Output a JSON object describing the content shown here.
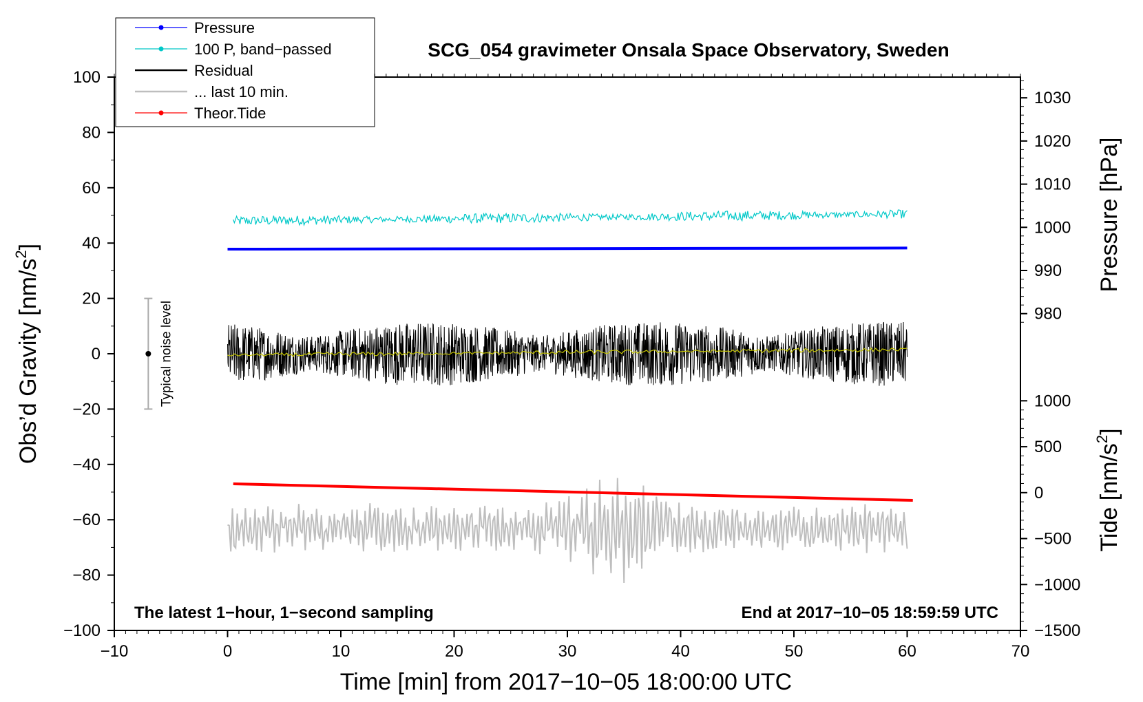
{
  "chart_data": {
    "type": "line",
    "title": "SCG_054 gravimeter Onsala Space Observatory, Sweden",
    "xlabel": "Time [min] from 2017−10−05 18:00:00 UTC",
    "ylabel": "Obs’d Gravity [nm/s²]",
    "ylabel_main": "Obs’d Gravity [nm/s",
    "ylabel_sup": "2",
    "ylabel_close": "]",
    "xlim": [
      -10,
      70
    ],
    "ylim": [
      -100,
      100
    ],
    "x_ticks": [
      -10,
      0,
      10,
      20,
      30,
      40,
      50,
      60,
      70
    ],
    "x_tick_labels": [
      "−10",
      "0",
      "10",
      "20",
      "30",
      "40",
      "50",
      "60",
      "70"
    ],
    "y_ticks": [
      -100,
      -80,
      -60,
      -40,
      -20,
      0,
      20,
      40,
      60,
      80,
      100
    ],
    "y_tick_labels": [
      "−100",
      "−80",
      "−60",
      "−40",
      "−20",
      "0",
      "20",
      "40",
      "60",
      "80",
      "100"
    ],
    "pressure_axis": {
      "label": "Pressure [hPa]",
      "ticks": [
        980,
        990,
        1000,
        1010,
        1020,
        1030
      ],
      "tick_labels": [
        "980",
        "990",
        "1000",
        "1010",
        "1020",
        "1030"
      ],
      "mapping": {
        "value_a": 980,
        "gravity_a": 14.5,
        "value_b": 1030,
        "gravity_b": 92.5
      }
    },
    "tide_axis": {
      "label_main": "Tide [nm/s",
      "label_sup": "2",
      "label_close": "]",
      "ticks": [
        -1500,
        -1000,
        -500,
        0,
        500,
        1000
      ],
      "tick_labels": [
        "−1500",
        "−1000",
        "−500",
        "0",
        "500",
        "1000"
      ],
      "mapping": {
        "value_a": -1500,
        "gravity_a": -100,
        "value_b": 1000,
        "gravity_b": -17
      }
    },
    "legend": [
      {
        "label": "Pressure",
        "color": "#0000ff",
        "marker": true
      },
      {
        "label": "100 P, band−passed",
        "color": "#00c8c8",
        "marker": true
      },
      {
        "label": "Residual",
        "color": "#000000",
        "marker": false
      },
      {
        "label": "... last 10 min.",
        "color": "#bebebe",
        "marker": false
      },
      {
        "label": "Theor.Tide",
        "color": "#ff0000",
        "marker": true
      }
    ],
    "series": [
      {
        "name": "Pressure",
        "color": "#0000ff",
        "kind": "line",
        "x": [
          0,
          60
        ],
        "y": [
          37.8,
          38.2
        ]
      },
      {
        "name": "100 P, band−passed",
        "color": "#00c8c8",
        "kind": "noise",
        "x_start": 0.5,
        "x_end": 60,
        "y_start": 48,
        "y_end": 50.5,
        "amplitude": 1.4,
        "samples": 600
      },
      {
        "name": "Residual",
        "color": "#000000",
        "kind": "noise",
        "x_start": 0,
        "x_end": 60,
        "y_start": 0,
        "y_end": 0,
        "amplitude": 9,
        "samples": 1800
      },
      {
        "name": "Residual mean",
        "color": "#c8c800",
        "kind": "noise",
        "x_start": 0,
        "x_end": 60,
        "y_start": -0.5,
        "y_end": 1.5,
        "amplitude": 0.6,
        "samples": 300
      },
      {
        "name": "... last 10 min.",
        "color": "#bebebe",
        "kind": "oscillation",
        "x_start": 0,
        "x_end": 60,
        "y_center": -63,
        "amplitude": 7,
        "samples": 420
      },
      {
        "name": "Theor.Tide",
        "color": "#ff0000",
        "kind": "line",
        "x": [
          0.5,
          60.5
        ],
        "y": [
          -47,
          -53
        ]
      }
    ],
    "noise_level": {
      "label": "Typical noise level",
      "x": -7,
      "y_center": 0,
      "y_low": -20,
      "y_high": 20
    },
    "annotations": {
      "left": "The latest 1−hour, 1−second sampling",
      "right": "End at 2017−10−05 18:59:59 UTC"
    }
  }
}
